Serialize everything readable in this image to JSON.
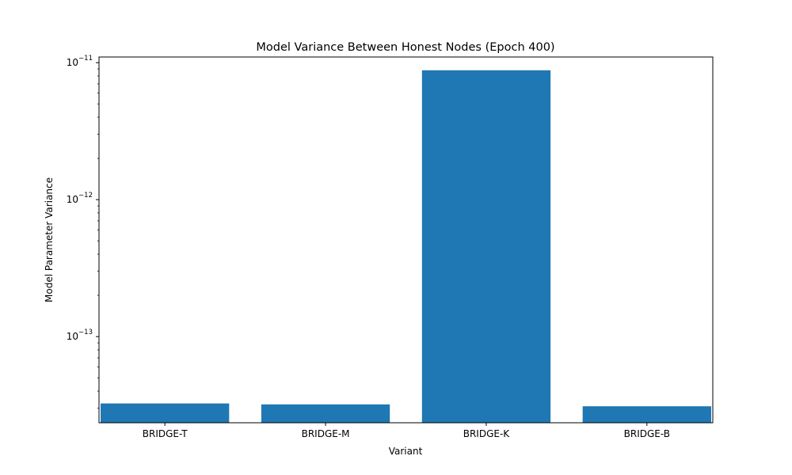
{
  "chart_data": {
    "type": "bar",
    "title": "Model Variance Between Honest Nodes (Epoch 400)",
    "xlabel": "Variant",
    "ylabel": "Model Parameter Variance",
    "categories": [
      "BRIDGE-T",
      "BRIDGE-M",
      "BRIDGE-K",
      "BRIDGE-B"
    ],
    "values": [
      3.25e-14,
      3.2e-14,
      8.8e-12,
      3.1e-14
    ],
    "ylim": [
      2.35e-14,
      1.1e-11
    ],
    "yscale": "log",
    "yticks": [
      {
        "value": 1e-13,
        "base": "10",
        "exp": "−13"
      },
      {
        "value": 1e-12,
        "base": "10",
        "exp": "−12"
      },
      {
        "value": 1e-11,
        "base": "10",
        "exp": "−11"
      }
    ],
    "bar_color": "#1f77b4",
    "grid": false,
    "legend": "none"
  }
}
